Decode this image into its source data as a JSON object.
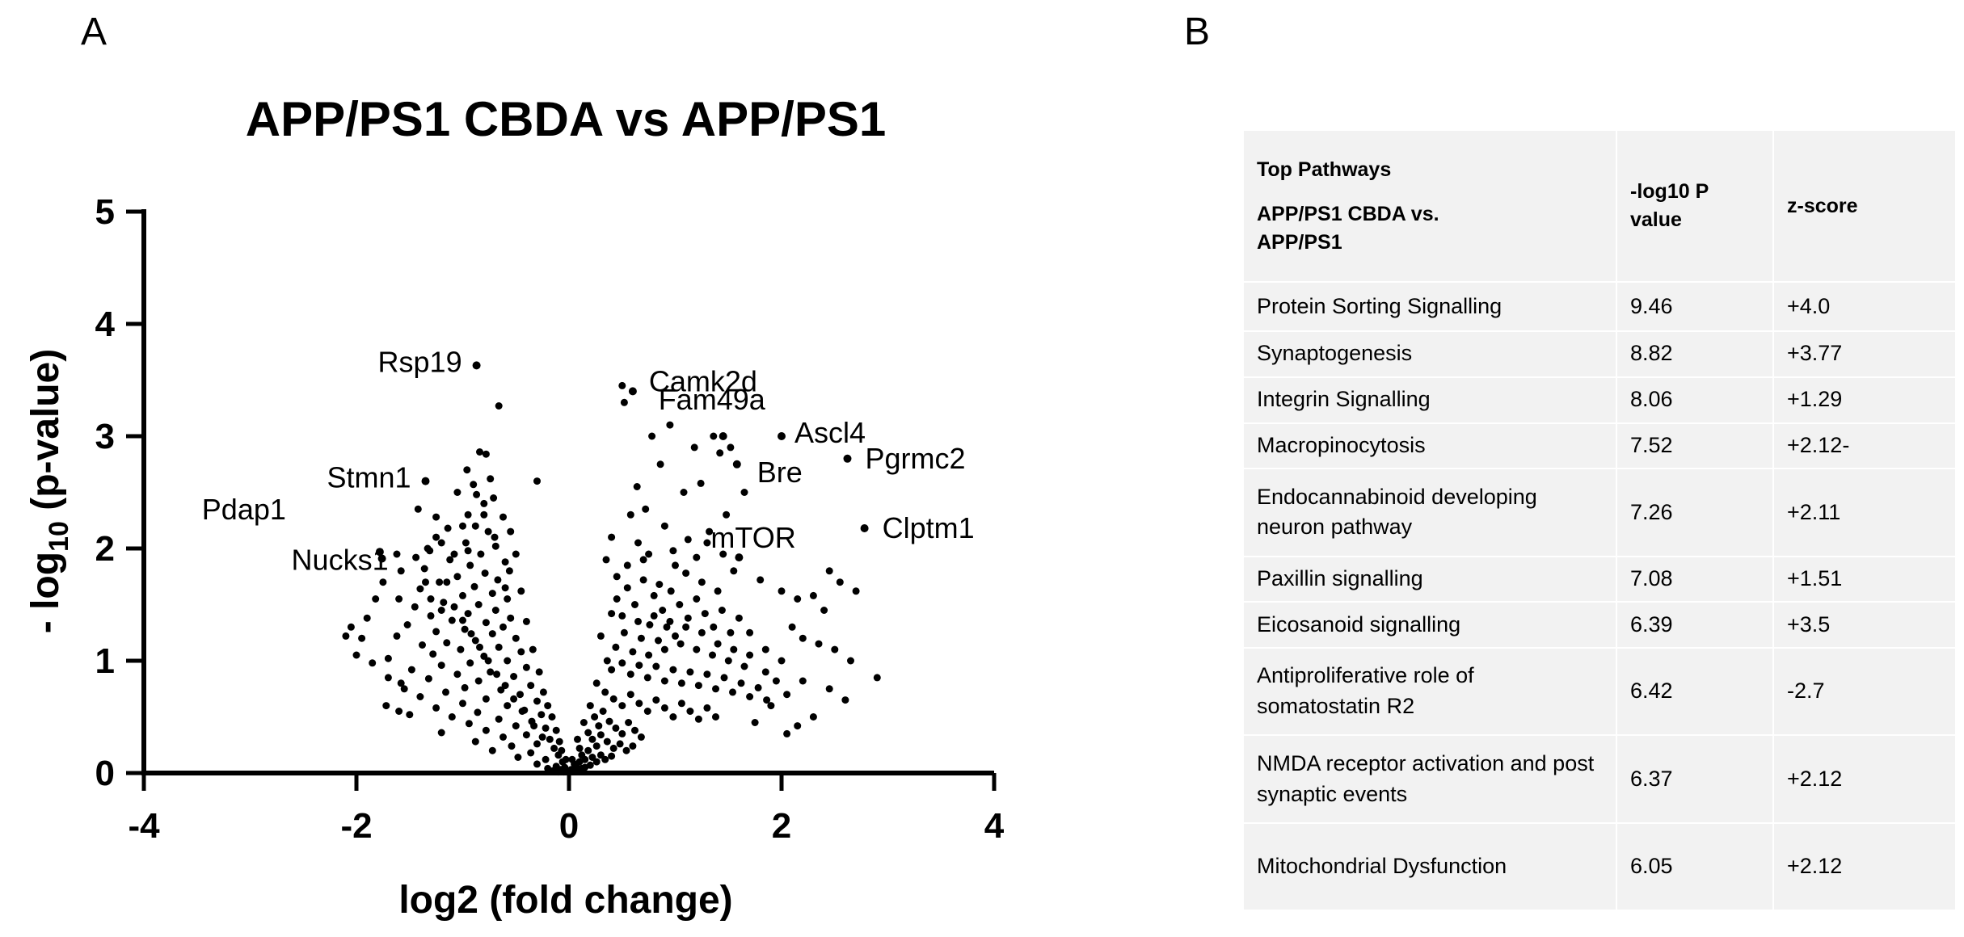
{
  "panel_labels": {
    "a": "A",
    "b": "B"
  },
  "chart_data": {
    "type": "scatter",
    "title": "APP/PS1 CBDA vs APP/PS1",
    "xlabel": "log2 (fold change)",
    "ylabel_prefix": "- log",
    "ylabel_sub": "10",
    "ylabel_suffix": " (p-value)",
    "xlim": [
      -4,
      4
    ],
    "ylim": [
      0,
      5
    ],
    "xticks": [
      -4,
      -2,
      0,
      2,
      4
    ],
    "yticks": [
      0,
      1,
      2,
      3,
      4,
      5
    ],
    "xtick_labels": [
      "-4",
      "-2",
      "0",
      "2",
      "4"
    ],
    "ytick_labels": [
      "0",
      "1",
      "2",
      "3",
      "4",
      "5"
    ],
    "grid": false,
    "marker_color": "#000000",
    "labeled_points": [
      {
        "gene": "Rsp19",
        "x": -0.87,
        "y": 3.63
      },
      {
        "gene": "Stmn1",
        "x": -1.35,
        "y": 2.6
      },
      {
        "gene": "Pdap1",
        "x": -1.78,
        "y": 1.97
      },
      {
        "gene": "Nucks1",
        "x": -1.76,
        "y": 1.91
      },
      {
        "gene": "Camk2d",
        "x": 0.6,
        "y": 3.4
      },
      {
        "gene": "Fam49a",
        "x": 1.45,
        "y": 3.0
      },
      {
        "gene": "Ascl4",
        "x": 2.0,
        "y": 3.0
      },
      {
        "gene": "Bre",
        "x": 1.58,
        "y": 2.75
      },
      {
        "gene": "Pgrmc2",
        "x": 2.62,
        "y": 2.8
      },
      {
        "gene": "Clptm1",
        "x": 2.78,
        "y": 2.18
      },
      {
        "gene": "mTOR",
        "x": 1.6,
        "y": 1.92
      }
    ],
    "points": [
      [
        -0.66,
        3.27
      ],
      [
        -0.84,
        2.86
      ],
      [
        -0.78,
        2.84
      ],
      [
        -0.74,
        2.62
      ],
      [
        -0.9,
        2.57
      ],
      [
        -0.71,
        2.45
      ],
      [
        -0.8,
        2.4
      ],
      [
        -1.42,
        2.35
      ],
      [
        -0.95,
        2.3
      ],
      [
        -0.62,
        2.28
      ],
      [
        -0.88,
        2.2
      ],
      [
        -0.76,
        2.15
      ],
      [
        -1.25,
        2.1
      ],
      [
        -0.97,
        2.05
      ],
      [
        -0.69,
        2.02
      ],
      [
        -1.31,
        1.98
      ],
      [
        -0.83,
        1.95
      ],
      [
        -1.12,
        1.9
      ],
      [
        -0.6,
        1.88
      ],
      [
        -0.93,
        1.85
      ],
      [
        -1.36,
        1.82
      ],
      [
        -0.79,
        1.78
      ],
      [
        -1.05,
        1.75
      ],
      [
        -0.67,
        1.72
      ],
      [
        -1.22,
        1.7
      ],
      [
        -0.89,
        1.66
      ],
      [
        -1.4,
        1.64
      ],
      [
        -0.72,
        1.6
      ],
      [
        -1.0,
        1.58
      ],
      [
        -0.58,
        1.55
      ],
      [
        -1.18,
        1.52
      ],
      [
        -0.85,
        1.5
      ],
      [
        -1.45,
        1.48
      ],
      [
        -0.69,
        1.45
      ],
      [
        -0.95,
        1.42
      ],
      [
        -1.3,
        1.4
      ],
      [
        -0.55,
        1.38
      ],
      [
        -1.1,
        1.36
      ],
      [
        -0.78,
        1.34
      ],
      [
        -1.52,
        1.32
      ],
      [
        -0.62,
        1.3
      ],
      [
        -0.98,
        1.28
      ],
      [
        -1.25,
        1.26
      ],
      [
        -0.72,
        1.24
      ],
      [
        -1.62,
        1.22
      ],
      [
        -0.5,
        1.2
      ],
      [
        -0.88,
        1.18
      ],
      [
        -1.15,
        1.16
      ],
      [
        -1.38,
        1.14
      ],
      [
        -0.66,
        1.12
      ],
      [
        -1.02,
        1.1
      ],
      [
        -0.45,
        1.08
      ],
      [
        -1.28,
        1.06
      ],
      [
        -0.8,
        1.04
      ],
      [
        -1.7,
        1.02
      ],
      [
        -0.58,
        1.0
      ],
      [
        -0.93,
        0.98
      ],
      [
        -1.2,
        0.96
      ],
      [
        -0.4,
        0.94
      ],
      [
        -1.48,
        0.92
      ],
      [
        -0.74,
        0.9
      ],
      [
        -1.05,
        0.88
      ],
      [
        -0.52,
        0.86
      ],
      [
        -1.32,
        0.84
      ],
      [
        -0.85,
        0.82
      ],
      [
        -1.58,
        0.8
      ],
      [
        -0.36,
        0.78
      ],
      [
        -0.98,
        0.76
      ],
      [
        -0.64,
        0.74
      ],
      [
        -1.16,
        0.72
      ],
      [
        -0.46,
        0.7
      ],
      [
        -1.4,
        0.68
      ],
      [
        -0.78,
        0.66
      ],
      [
        -0.3,
        0.64
      ],
      [
        -1.0,
        0.62
      ],
      [
        -0.58,
        0.6
      ],
      [
        -1.25,
        0.58
      ],
      [
        -0.42,
        0.56
      ],
      [
        -0.86,
        0.54
      ],
      [
        -0.26,
        0.52
      ],
      [
        -1.1,
        0.5
      ],
      [
        -0.66,
        0.48
      ],
      [
        -0.35,
        0.46
      ],
      [
        -0.94,
        0.44
      ],
      [
        -0.5,
        0.42
      ],
      [
        -0.22,
        0.4
      ],
      [
        -0.78,
        0.38
      ],
      [
        -1.2,
        0.36
      ],
      [
        -0.4,
        0.34
      ],
      [
        -0.62,
        0.32
      ],
      [
        -0.18,
        0.3
      ],
      [
        -0.88,
        0.28
      ],
      [
        -0.3,
        0.26
      ],
      [
        -0.54,
        0.24
      ],
      [
        -0.14,
        0.22
      ],
      [
        -0.72,
        0.2
      ],
      [
        -0.36,
        0.18
      ],
      [
        -0.1,
        0.16
      ],
      [
        -0.48,
        0.14
      ],
      [
        -0.22,
        0.12
      ],
      [
        -0.06,
        0.1
      ],
      [
        -0.3,
        0.08
      ],
      [
        -0.12,
        0.06
      ],
      [
        -0.04,
        0.05
      ],
      [
        -0.2,
        0.04
      ],
      [
        -0.08,
        0.03
      ],
      [
        -0.02,
        0.02
      ],
      [
        -0.15,
        0.02
      ],
      [
        -0.05,
        0.01
      ],
      [
        -0.1,
        0.01
      ],
      [
        -1.62,
        1.95
      ],
      [
        -1.6,
        1.55
      ],
      [
        -1.58,
        1.8
      ],
      [
        -1.75,
        1.7
      ],
      [
        -1.82,
        1.55
      ],
      [
        -1.9,
        1.38
      ],
      [
        -2.05,
        1.3
      ],
      [
        -2.1,
        1.22
      ],
      [
        -1.95,
        1.2
      ],
      [
        -2.0,
        1.05
      ],
      [
        -1.85,
        0.98
      ],
      [
        -1.7,
        0.85
      ],
      [
        -1.55,
        0.75
      ],
      [
        -1.72,
        0.6
      ],
      [
        -1.6,
        0.55
      ],
      [
        -1.5,
        0.52
      ],
      [
        -1.3,
        1.55
      ],
      [
        -1.35,
        1.7
      ],
      [
        -1.2,
        2.05
      ],
      [
        -1.14,
        2.18
      ],
      [
        -1.25,
        2.28
      ],
      [
        -1.33,
        2.0
      ],
      [
        -1.44,
        1.92
      ],
      [
        -0.96,
        2.7
      ],
      [
        -1.05,
        2.5
      ],
      [
        -0.55,
        2.15
      ],
      [
        -0.5,
        1.95
      ],
      [
        -0.45,
        1.62
      ],
      [
        -0.3,
        2.6
      ],
      [
        -0.4,
        1.35
      ],
      [
        -0.56,
        1.8
      ],
      [
        -0.6,
        1.65
      ],
      [
        -0.7,
        2.1
      ],
      [
        -0.8,
        2.3
      ],
      [
        -0.87,
        2.48
      ],
      [
        -0.95,
        1.98
      ],
      [
        -1.0,
        2.2
      ],
      [
        -1.08,
        1.95
      ],
      [
        -1.15,
        1.7
      ],
      [
        -1.2,
        1.45
      ],
      [
        -0.34,
        1.1
      ],
      [
        -0.28,
        0.9
      ],
      [
        -0.24,
        0.72
      ],
      [
        -0.2,
        0.6
      ],
      [
        -0.16,
        0.5
      ],
      [
        -0.12,
        0.38
      ],
      [
        -0.09,
        0.28
      ],
      [
        -0.07,
        0.2
      ],
      [
        -0.03,
        0.12
      ],
      [
        -0.25,
        0.32
      ],
      [
        -0.33,
        0.42
      ],
      [
        -0.44,
        0.55
      ],
      [
        -0.52,
        0.66
      ],
      [
        -0.6,
        0.78
      ],
      [
        -0.68,
        0.88
      ],
      [
        -0.76,
        1.0
      ],
      [
        -0.84,
        1.12
      ],
      [
        -0.92,
        1.24
      ],
      [
        -1.0,
        1.36
      ],
      [
        -1.08,
        1.48
      ],
      [
        0.5,
        3.45
      ],
      [
        0.52,
        3.3
      ],
      [
        0.78,
        3.0
      ],
      [
        0.95,
        3.1
      ],
      [
        1.18,
        2.9
      ],
      [
        1.42,
        2.85
      ],
      [
        1.36,
        3.0
      ],
      [
        1.24,
        2.58
      ],
      [
        1.52,
        2.9
      ],
      [
        1.65,
        2.5
      ],
      [
        1.08,
        2.5
      ],
      [
        0.86,
        2.75
      ],
      [
        0.64,
        2.55
      ],
      [
        0.72,
        2.35
      ],
      [
        0.9,
        2.2
      ],
      [
        1.32,
        2.15
      ],
      [
        1.48,
        2.3
      ],
      [
        1.12,
        2.08
      ],
      [
        0.58,
        2.3
      ],
      [
        0.4,
        2.1
      ],
      [
        0.98,
        1.98
      ],
      [
        1.2,
        1.92
      ],
      [
        0.7,
        1.9
      ],
      [
        1.55,
        1.8
      ],
      [
        1.8,
        1.72
      ],
      [
        2.0,
        1.62
      ],
      [
        2.15,
        1.55
      ],
      [
        2.3,
        1.58
      ],
      [
        2.45,
        1.8
      ],
      [
        2.55,
        1.7
      ],
      [
        2.7,
        1.62
      ],
      [
        2.4,
        1.45
      ],
      [
        2.1,
        1.3
      ],
      [
        2.2,
        1.2
      ],
      [
        2.35,
        1.15
      ],
      [
        2.5,
        1.1
      ],
      [
        2.65,
        1.0
      ],
      [
        2.0,
        1.0
      ],
      [
        1.85,
        1.1
      ],
      [
        1.7,
        1.25
      ],
      [
        2.9,
        0.85
      ],
      [
        2.6,
        0.65
      ],
      [
        2.45,
        0.75
      ],
      [
        2.2,
        0.82
      ],
      [
        2.05,
        0.7
      ],
      [
        1.9,
        0.6
      ],
      [
        2.3,
        0.5
      ],
      [
        2.15,
        0.42
      ],
      [
        2.05,
        0.35
      ],
      [
        1.75,
        0.45
      ],
      [
        0.35,
        1.9
      ],
      [
        0.45,
        1.75
      ],
      [
        0.55,
        1.65
      ],
      [
        0.62,
        1.5
      ],
      [
        0.7,
        1.72
      ],
      [
        0.8,
        1.58
      ],
      [
        0.88,
        1.45
      ],
      [
        0.96,
        1.62
      ],
      [
        1.04,
        1.5
      ],
      [
        1.12,
        1.38
      ],
      [
        1.2,
        1.55
      ],
      [
        1.28,
        1.42
      ],
      [
        1.36,
        1.3
      ],
      [
        1.44,
        1.45
      ],
      [
        1.52,
        1.25
      ],
      [
        1.6,
        1.38
      ],
      [
        1.0,
        1.22
      ],
      [
        0.92,
        1.3
      ],
      [
        0.84,
        1.18
      ],
      [
        0.76,
        1.32
      ],
      [
        0.68,
        1.2
      ],
      [
        0.6,
        1.08
      ],
      [
        0.52,
        1.25
      ],
      [
        0.44,
        1.12
      ],
      [
        0.36,
        1.0
      ],
      [
        0.3,
        1.22
      ],
      [
        0.4,
        0.92
      ],
      [
        0.5,
        0.98
      ],
      [
        0.58,
        0.88
      ],
      [
        0.66,
        0.96
      ],
      [
        0.74,
        0.85
      ],
      [
        0.82,
        0.95
      ],
      [
        0.9,
        0.82
      ],
      [
        0.98,
        0.92
      ],
      [
        1.06,
        0.8
      ],
      [
        1.14,
        0.9
      ],
      [
        1.22,
        0.78
      ],
      [
        1.3,
        0.88
      ],
      [
        1.38,
        0.75
      ],
      [
        1.46,
        0.85
      ],
      [
        1.54,
        0.72
      ],
      [
        1.62,
        0.8
      ],
      [
        1.7,
        0.68
      ],
      [
        1.78,
        0.76
      ],
      [
        1.86,
        0.65
      ],
      [
        0.26,
        0.8
      ],
      [
        0.34,
        0.72
      ],
      [
        0.42,
        0.66
      ],
      [
        0.5,
        0.6
      ],
      [
        0.58,
        0.7
      ],
      [
        0.66,
        0.62
      ],
      [
        0.74,
        0.55
      ],
      [
        0.82,
        0.65
      ],
      [
        0.9,
        0.58
      ],
      [
        0.98,
        0.5
      ],
      [
        1.06,
        0.62
      ],
      [
        1.14,
        0.55
      ],
      [
        1.22,
        0.48
      ],
      [
        1.3,
        0.58
      ],
      [
        1.38,
        0.5
      ],
      [
        0.2,
        0.6
      ],
      [
        0.24,
        0.5
      ],
      [
        0.28,
        0.42
      ],
      [
        0.32,
        0.55
      ],
      [
        0.38,
        0.46
      ],
      [
        0.44,
        0.4
      ],
      [
        0.5,
        0.35
      ],
      [
        0.56,
        0.45
      ],
      [
        0.62,
        0.38
      ],
      [
        0.68,
        0.32
      ],
      [
        0.14,
        0.45
      ],
      [
        0.18,
        0.36
      ],
      [
        0.22,
        0.3
      ],
      [
        0.26,
        0.24
      ],
      [
        0.3,
        0.34
      ],
      [
        0.36,
        0.28
      ],
      [
        0.42,
        0.22
      ],
      [
        0.48,
        0.26
      ],
      [
        0.54,
        0.2
      ],
      [
        0.6,
        0.24
      ],
      [
        0.08,
        0.3
      ],
      [
        0.1,
        0.22
      ],
      [
        0.12,
        0.16
      ],
      [
        0.15,
        0.12
      ],
      [
        0.18,
        0.2
      ],
      [
        0.22,
        0.14
      ],
      [
        0.26,
        0.1
      ],
      [
        0.3,
        0.16
      ],
      [
        0.34,
        0.12
      ],
      [
        0.4,
        0.15
      ],
      [
        0.03,
        0.12
      ],
      [
        0.05,
        0.08
      ],
      [
        0.07,
        0.05
      ],
      [
        0.1,
        0.1
      ],
      [
        0.12,
        0.04
      ],
      [
        0.02,
        0.03
      ],
      [
        0.05,
        0.02
      ],
      [
        0.08,
        0.02
      ],
      [
        0.15,
        0.05
      ],
      [
        0.2,
        0.07
      ],
      [
        1.1,
        1.78
      ],
      [
        1.25,
        1.7
      ],
      [
        1.4,
        1.62
      ],
      [
        1.45,
        1.95
      ],
      [
        1.3,
        2.05
      ],
      [
        1.0,
        1.85
      ],
      [
        0.85,
        1.68
      ],
      [
        0.75,
        1.95
      ],
      [
        0.65,
        2.05
      ],
      [
        0.55,
        1.85
      ],
      [
        0.45,
        1.55
      ],
      [
        0.4,
        1.42
      ],
      [
        0.5,
        1.4
      ],
      [
        0.65,
        1.35
      ],
      [
        0.8,
        1.4
      ],
      [
        0.95,
        1.35
      ],
      [
        1.1,
        1.3
      ],
      [
        1.25,
        1.25
      ],
      [
        1.4,
        1.15
      ],
      [
        1.55,
        1.1
      ],
      [
        1.7,
        1.05
      ],
      [
        1.85,
        0.9
      ],
      [
        1.95,
        0.82
      ],
      [
        1.65,
        0.95
      ],
      [
        1.5,
        1.0
      ],
      [
        1.35,
        1.05
      ],
      [
        1.2,
        1.1
      ],
      [
        1.05,
        1.15
      ],
      [
        0.9,
        1.1
      ],
      [
        0.75,
        1.05
      ]
    ]
  },
  "table": {
    "header": {
      "col1_lines": [
        "Top Pathways",
        "APP/PS1 CBDA vs.",
        "APP/PS1"
      ],
      "col2_lines": [
        "-log10 P",
        "value"
      ],
      "col3": "z-score"
    },
    "rows": [
      {
        "pathway": "Protein Sorting Signalling",
        "logp": "9.46",
        "zscore": "+4.0"
      },
      {
        "pathway": "Synaptogenesis",
        "logp": "8.82",
        "zscore": "+3.77"
      },
      {
        "pathway": "Integrin Signalling",
        "logp": "8.06",
        "zscore": "+1.29"
      },
      {
        "pathway": "Macropinocytosis",
        "logp": "7.52",
        "zscore": "+2.12-"
      },
      {
        "pathway": "Endocannabinoid developing neuron pathway",
        "logp": "7.26",
        "zscore": "+2.11"
      },
      {
        "pathway": "Paxillin signalling",
        "logp": "7.08",
        "zscore": "+1.51"
      },
      {
        "pathway": "Eicosanoid signalling",
        "logp": "6.39",
        "zscore": "+3.5"
      },
      {
        "pathway": "Antiproliferative role of somatostatin R2",
        "logp": "6.42",
        "zscore": "-2.7"
      },
      {
        "pathway": "NMDA receptor activation and post synaptic events",
        "logp": "6.37",
        "zscore": "+2.12"
      },
      {
        "pathway": "Mitochondrial Dysfunction",
        "logp": "6.05",
        "zscore": "+2.12"
      }
    ]
  }
}
